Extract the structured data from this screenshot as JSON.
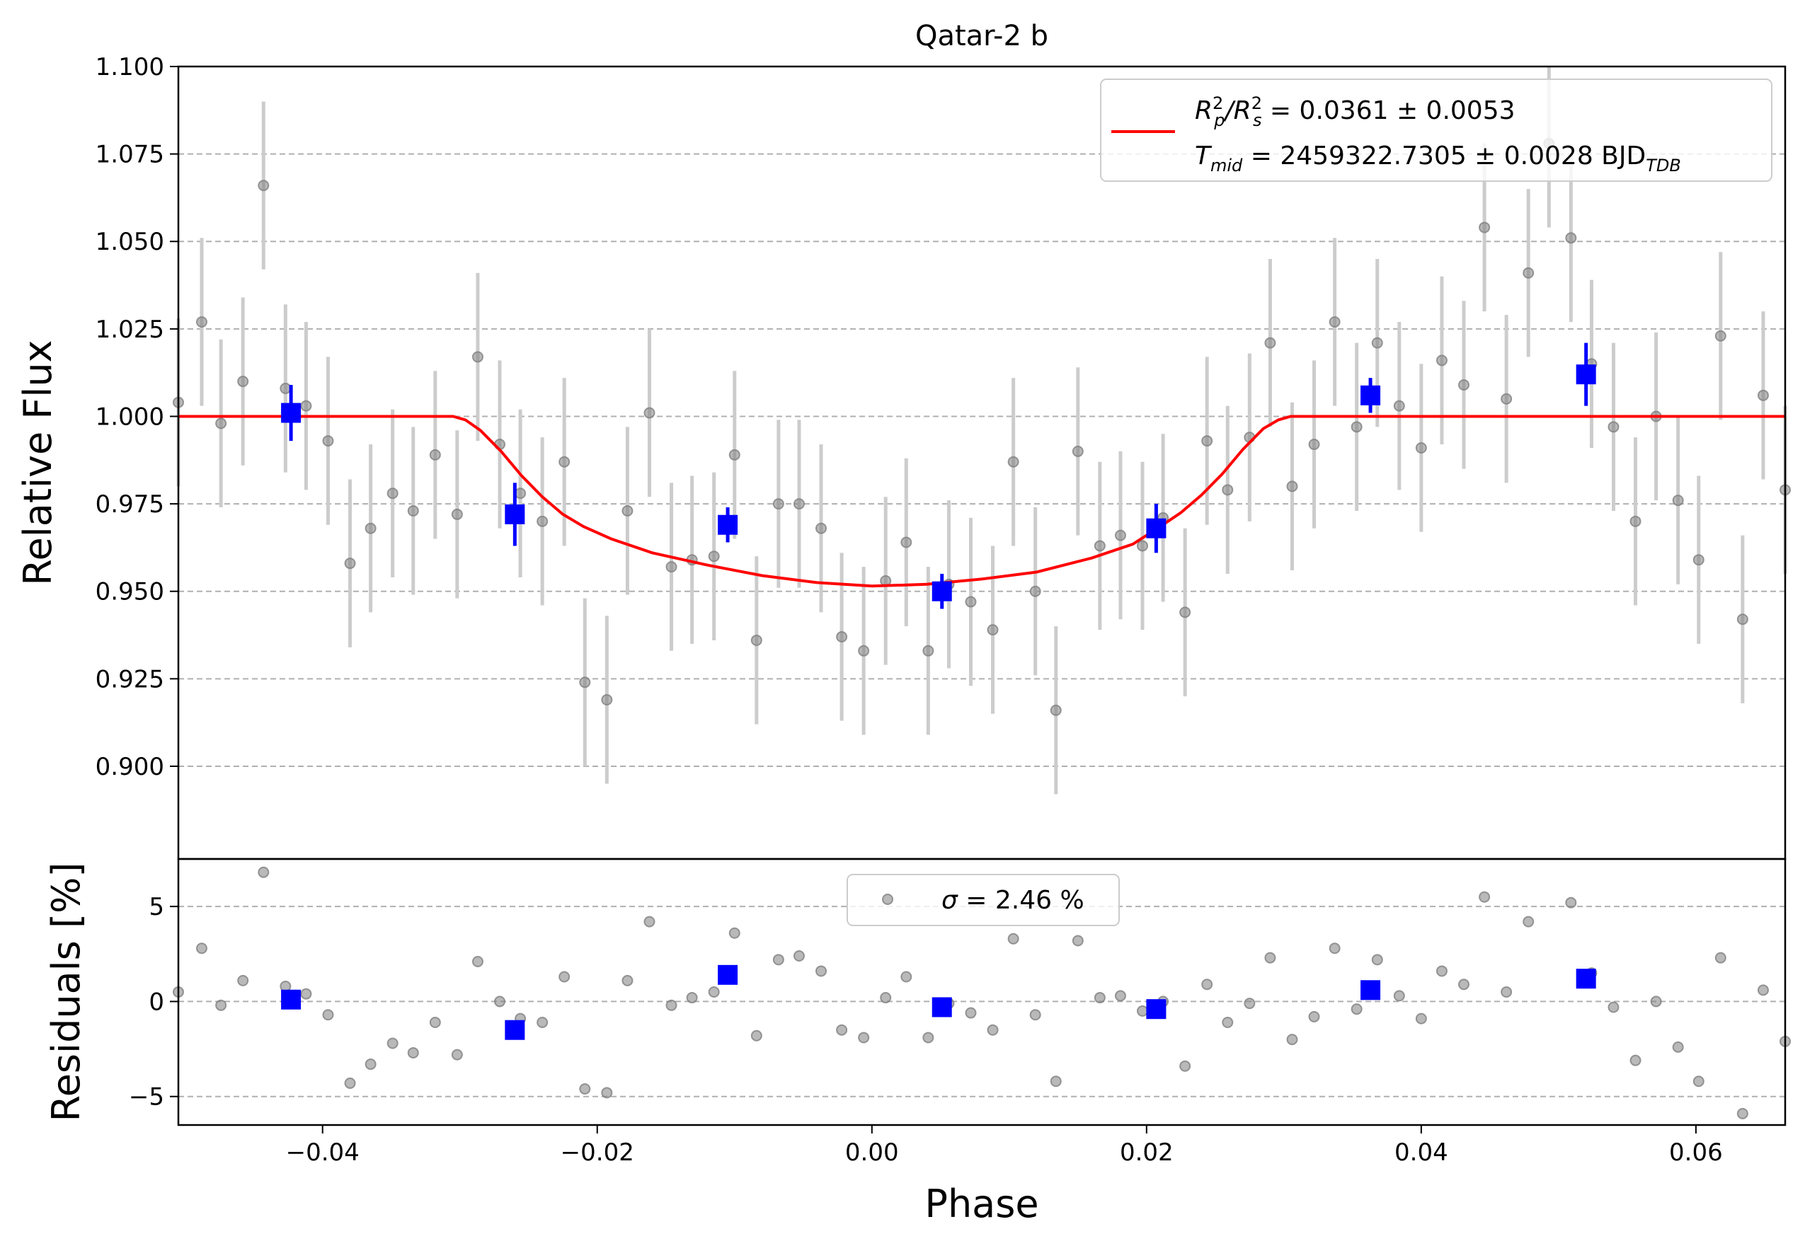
{
  "chart_data": [
    {
      "type": "scatter",
      "title": "Qatar-2 b",
      "xlabel": "",
      "ylabel": "Relative Flux",
      "xlim": [
        -0.0505,
        0.0665
      ],
      "ylim": [
        0.8735,
        1.1
      ],
      "grid": "horizontal dashed",
      "legend_position": "top-right",
      "yticks": [
        "0.900",
        "0.925",
        "0.950",
        "0.975",
        "1.000",
        "1.025",
        "1.050",
        "1.075",
        "1.100"
      ],
      "series": [
        {
          "marker": "grey circle with error bar",
          "color": "#808080",
          "points": [
            [
              -0.0505,
              1.004,
              0.024
            ],
            [
              -0.0488,
              1.027,
              0.024
            ],
            [
              -0.0474,
              0.998,
              0.024
            ],
            [
              -0.0458,
              1.01,
              0.024
            ],
            [
              -0.0443,
              1.066,
              0.024
            ],
            [
              -0.0427,
              1.008,
              0.024
            ],
            [
              -0.0412,
              1.003,
              0.024
            ],
            [
              -0.0396,
              0.993,
              0.024
            ],
            [
              -0.038,
              0.958,
              0.024
            ],
            [
              -0.0365,
              0.968,
              0.024
            ],
            [
              -0.0349,
              0.978,
              0.024
            ],
            [
              -0.0334,
              0.973,
              0.024
            ],
            [
              -0.0318,
              0.989,
              0.024
            ],
            [
              -0.0302,
              0.972,
              0.024
            ],
            [
              -0.0287,
              1.017,
              0.024
            ],
            [
              -0.0271,
              0.992,
              0.024
            ],
            [
              -0.0256,
              0.978,
              0.024
            ],
            [
              -0.024,
              0.97,
              0.024
            ],
            [
              -0.0224,
              0.987,
              0.024
            ],
            [
              -0.0209,
              0.924,
              0.024
            ],
            [
              -0.0193,
              0.919,
              0.024
            ],
            [
              -0.0178,
              0.973,
              0.024
            ],
            [
              -0.0162,
              1.001,
              0.024
            ],
            [
              -0.0146,
              0.957,
              0.024
            ],
            [
              -0.0131,
              0.959,
              0.024
            ],
            [
              -0.0115,
              0.96,
              0.024
            ],
            [
              -0.01,
              0.989,
              0.024
            ],
            [
              -0.0084,
              0.936,
              0.024
            ],
            [
              -0.0068,
              0.975,
              0.024
            ],
            [
              -0.0053,
              0.975,
              0.024
            ],
            [
              -0.0037,
              0.968,
              0.024
            ],
            [
              -0.0022,
              0.937,
              0.024
            ],
            [
              -0.0006,
              0.933,
              0.024
            ],
            [
              0.001,
              0.953,
              0.024
            ],
            [
              0.0025,
              0.964,
              0.024
            ],
            [
              0.0041,
              0.933,
              0.024
            ],
            [
              0.0056,
              0.952,
              0.024
            ],
            [
              0.0072,
              0.947,
              0.024
            ],
            [
              0.0088,
              0.939,
              0.024
            ],
            [
              0.0103,
              0.987,
              0.024
            ],
            [
              0.0119,
              0.95,
              0.024
            ],
            [
              0.0134,
              0.916,
              0.024
            ],
            [
              0.015,
              0.99,
              0.024
            ],
            [
              0.0166,
              0.963,
              0.024
            ],
            [
              0.0181,
              0.966,
              0.024
            ],
            [
              0.0197,
              0.963,
              0.024
            ],
            [
              0.0212,
              0.971,
              0.024
            ],
            [
              0.0228,
              0.944,
              0.024
            ],
            [
              0.0244,
              0.993,
              0.024
            ],
            [
              0.0259,
              0.979,
              0.024
            ],
            [
              0.0275,
              0.994,
              0.024
            ],
            [
              0.029,
              1.021,
              0.024
            ],
            [
              0.0306,
              0.98,
              0.024
            ],
            [
              0.0322,
              0.992,
              0.024
            ],
            [
              0.0337,
              1.027,
              0.024
            ],
            [
              0.0353,
              0.997,
              0.024
            ],
            [
              0.0368,
              1.021,
              0.024
            ],
            [
              0.0384,
              1.003,
              0.024
            ],
            [
              0.04,
              0.991,
              0.024
            ],
            [
              0.0415,
              1.016,
              0.024
            ],
            [
              0.0431,
              1.009,
              0.024
            ],
            [
              0.0446,
              1.054,
              0.024
            ],
            [
              0.0462,
              1.005,
              0.024
            ],
            [
              0.0478,
              1.041,
              0.024
            ],
            [
              0.0493,
              1.078,
              0.024
            ],
            [
              0.0509,
              1.051,
              0.024
            ],
            [
              0.0524,
              1.015,
              0.024
            ],
            [
              0.054,
              0.997,
              0.024
            ],
            [
              0.0556,
              0.97,
              0.024
            ],
            [
              0.0571,
              1.0,
              0.024
            ],
            [
              0.0587,
              0.976,
              0.024
            ],
            [
              0.0602,
              0.959,
              0.024
            ],
            [
              0.0618,
              1.023,
              0.024
            ],
            [
              0.0634,
              0.942,
              0.024
            ],
            [
              0.0649,
              1.006,
              0.024
            ],
            [
              0.0665,
              0.979,
              0.024
            ]
          ]
        },
        {
          "marker": "blue square with error bar",
          "color": "#0000ff",
          "points": [
            [
              -0.0423,
              1.001,
              0.008
            ],
            [
              -0.026,
              0.972,
              0.009
            ],
            [
              -0.0105,
              0.969,
              0.005
            ],
            [
              0.0051,
              0.95,
              0.005
            ],
            [
              0.0207,
              0.968,
              0.007
            ],
            [
              0.0363,
              1.006,
              0.005
            ],
            [
              0.052,
              1.012,
              0.009
            ]
          ]
        },
        {
          "name": "R_p^2/R_s^2 = 0.0361 ± 0.0053 / T_mid = 2459322.7305 ± 0.0028 BJD_TDB",
          "marker": "line",
          "color": "#ff0000",
          "points": [
            [
              -0.0505,
              1.0
            ],
            [
              -0.0305,
              1.0
            ],
            [
              -0.0296,
              0.999
            ],
            [
              -0.0285,
              0.996
            ],
            [
              -0.027,
              0.99
            ],
            [
              -0.0255,
              0.983
            ],
            [
              -0.024,
              0.977
            ],
            [
              -0.0225,
              0.972
            ],
            [
              -0.021,
              0.9685
            ],
            [
              -0.019,
              0.965
            ],
            [
              -0.016,
              0.961
            ],
            [
              -0.012,
              0.9575
            ],
            [
              -0.008,
              0.9545
            ],
            [
              -0.004,
              0.9525
            ],
            [
              0.0,
              0.9515
            ],
            [
              0.004,
              0.952
            ],
            [
              0.008,
              0.9535
            ],
            [
              0.012,
              0.9555
            ],
            [
              0.016,
              0.9595
            ],
            [
              0.019,
              0.9635
            ],
            [
              0.021,
              0.9685
            ],
            [
              0.0225,
              0.9725
            ],
            [
              0.024,
              0.9775
            ],
            [
              0.0255,
              0.9835
            ],
            [
              0.027,
              0.9905
            ],
            [
              0.0285,
              0.9965
            ],
            [
              0.0296,
              0.999
            ],
            [
              0.0305,
              1.0
            ],
            [
              0.0665,
              1.0
            ]
          ]
        }
      ],
      "legend": {
        "line1": {
          "lhs": "R",
          "lhs_sup": "2",
          "lhs_sub": "p",
          "slash": "/R",
          "rhs_sup": "2",
          "rhs_sub": "s",
          "value": " = 0.0361 ± 0.0053"
        },
        "line2": {
          "t": "T",
          "t_sub": "mid",
          "value": " = 2459322.7305 ± 0.0028 BJD",
          "unit_sub": "TDB"
        }
      }
    },
    {
      "type": "scatter",
      "title": "",
      "xlabel": "Phase",
      "ylabel": "Residuals [%]",
      "xlim": [
        -0.0505,
        0.0665
      ],
      "ylim": [
        -6.5,
        7.5
      ],
      "grid": "horizontal dashed",
      "legend_position": "top-center",
      "xticks": [
        "−0.04",
        "−0.02",
        "0.00",
        "0.02",
        "0.04",
        "0.06"
      ],
      "yticks": [
        "−5",
        "0",
        "5"
      ],
      "legend": {
        "sigma": "σ",
        "value": " = 2.46 %"
      },
      "series": [
        {
          "marker": "grey circle",
          "color": "#808080",
          "points": [
            [
              -0.0505,
              0.5
            ],
            [
              -0.0488,
              2.8
            ],
            [
              -0.0474,
              -0.2
            ],
            [
              -0.0458,
              1.1
            ],
            [
              -0.0443,
              6.8
            ],
            [
              -0.0427,
              0.8
            ],
            [
              -0.0412,
              0.4
            ],
            [
              -0.0396,
              -0.7
            ],
            [
              -0.038,
              -4.3
            ],
            [
              -0.0365,
              -3.3
            ],
            [
              -0.0349,
              -2.2
            ],
            [
              -0.0334,
              -2.7
            ],
            [
              -0.0318,
              -1.1
            ],
            [
              -0.0302,
              -2.8
            ],
            [
              -0.0287,
              2.1
            ],
            [
              -0.0271,
              0.0
            ],
            [
              -0.0256,
              -0.9
            ],
            [
              -0.024,
              -1.1
            ],
            [
              -0.0224,
              1.3
            ],
            [
              -0.0209,
              -4.6
            ],
            [
              -0.0193,
              -4.8
            ],
            [
              -0.0178,
              1.1
            ],
            [
              -0.0162,
              4.2
            ],
            [
              -0.0146,
              -0.2
            ],
            [
              -0.0131,
              0.2
            ],
            [
              -0.0115,
              0.5
            ],
            [
              -0.01,
              3.6
            ],
            [
              -0.0084,
              -1.8
            ],
            [
              -0.0068,
              2.2
            ],
            [
              -0.0053,
              2.4
            ],
            [
              -0.0037,
              1.6
            ],
            [
              -0.0022,
              -1.5
            ],
            [
              -0.0006,
              -1.9
            ],
            [
              0.001,
              0.2
            ],
            [
              0.0025,
              1.3
            ],
            [
              0.0041,
              -1.9
            ],
            [
              0.0056,
              -0.1
            ],
            [
              0.0072,
              -0.6
            ],
            [
              0.0088,
              -1.5
            ],
            [
              0.0103,
              3.3
            ],
            [
              0.0119,
              -0.7
            ],
            [
              0.0134,
              -4.2
            ],
            [
              0.015,
              3.2
            ],
            [
              0.0166,
              0.2
            ],
            [
              0.0181,
              0.3
            ],
            [
              0.0197,
              -0.5
            ],
            [
              0.0212,
              0.0
            ],
            [
              0.0228,
              -3.4
            ],
            [
              0.0244,
              0.9
            ],
            [
              0.0259,
              -1.1
            ],
            [
              0.0275,
              -0.1
            ],
            [
              0.029,
              2.3
            ],
            [
              0.0306,
              -2.0
            ],
            [
              0.0322,
              -0.8
            ],
            [
              0.0337,
              2.8
            ],
            [
              0.0353,
              -0.4
            ],
            [
              0.0368,
              2.2
            ],
            [
              0.0384,
              0.3
            ],
            [
              0.04,
              -0.9
            ],
            [
              0.0415,
              1.6
            ],
            [
              0.0431,
              0.9
            ],
            [
              0.0446,
              5.5
            ],
            [
              0.0462,
              0.5
            ],
            [
              0.0478,
              4.2
            ],
            [
              0.0509,
              5.2
            ],
            [
              0.0524,
              1.5
            ],
            [
              0.054,
              -0.3
            ],
            [
              0.0556,
              -3.1
            ],
            [
              0.0571,
              0.0
            ],
            [
              0.0587,
              -2.4
            ],
            [
              0.0602,
              -4.2
            ],
            [
              0.0618,
              2.3
            ],
            [
              0.0634,
              -5.9
            ],
            [
              0.0649,
              0.6
            ],
            [
              0.0665,
              -2.1
            ]
          ]
        },
        {
          "marker": "blue square",
          "color": "#0000ff",
          "points": [
            [
              -0.0423,
              0.1
            ],
            [
              -0.026,
              -1.5
            ],
            [
              -0.0105,
              1.4
            ],
            [
              0.0051,
              -0.3
            ],
            [
              0.0207,
              -0.4
            ],
            [
              0.0363,
              0.6
            ],
            [
              0.052,
              1.2
            ]
          ]
        }
      ]
    }
  ]
}
